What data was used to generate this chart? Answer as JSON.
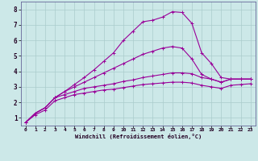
{
  "title": "",
  "xlabel": "Windchill (Refroidissement éolien,°C)",
  "ylabel": "",
  "background_color": "#cce8e8",
  "grid_color": "#aacccc",
  "line_color": "#990099",
  "xlim": [
    -0.5,
    23.5
  ],
  "ylim": [
    0.5,
    8.5
  ],
  "xticks": [
    0,
    1,
    2,
    3,
    4,
    5,
    6,
    7,
    8,
    9,
    10,
    11,
    12,
    13,
    14,
    15,
    16,
    17,
    18,
    19,
    20,
    21,
    22,
    23
  ],
  "yticks": [
    1,
    2,
    3,
    4,
    5,
    6,
    7,
    8
  ],
  "curve1_x": [
    0,
    1,
    2,
    3,
    4,
    5,
    6,
    7,
    8,
    9,
    10,
    11,
    12,
    13,
    14,
    15,
    16,
    17,
    18,
    19,
    20,
    21,
    22,
    23
  ],
  "curve1_y": [
    0.7,
    1.3,
    1.65,
    2.3,
    2.7,
    3.15,
    3.6,
    4.1,
    4.65,
    5.2,
    6.0,
    6.6,
    7.2,
    7.3,
    7.5,
    7.85,
    7.8,
    7.1,
    5.2,
    4.5,
    3.6,
    3.5,
    3.5,
    3.5
  ],
  "curve2_x": [
    0,
    1,
    2,
    3,
    4,
    5,
    6,
    7,
    8,
    9,
    10,
    11,
    12,
    13,
    14,
    15,
    16,
    17,
    18,
    19,
    20,
    21,
    22,
    23
  ],
  "curve2_y": [
    0.7,
    1.3,
    1.65,
    2.3,
    2.7,
    3.0,
    3.3,
    3.6,
    3.9,
    4.2,
    4.5,
    4.8,
    5.1,
    5.3,
    5.5,
    5.6,
    5.5,
    4.8,
    3.8,
    3.5,
    3.3,
    3.5,
    3.5,
    3.5
  ],
  "curve3_x": [
    0,
    1,
    2,
    3,
    4,
    5,
    6,
    7,
    8,
    9,
    10,
    11,
    12,
    13,
    14,
    15,
    16,
    17,
    18,
    19,
    20,
    21,
    22,
    23
  ],
  "curve3_y": [
    0.7,
    1.3,
    1.65,
    2.3,
    2.5,
    2.7,
    2.9,
    3.0,
    3.1,
    3.2,
    3.35,
    3.45,
    3.6,
    3.7,
    3.8,
    3.9,
    3.9,
    3.85,
    3.6,
    3.5,
    3.3,
    3.5,
    3.5,
    3.5
  ],
  "curve4_x": [
    0,
    1,
    2,
    3,
    4,
    5,
    6,
    7,
    8,
    9,
    10,
    11,
    12,
    13,
    14,
    15,
    16,
    17,
    18,
    19,
    20,
    21,
    22,
    23
  ],
  "curve4_y": [
    0.7,
    1.2,
    1.5,
    2.1,
    2.3,
    2.5,
    2.6,
    2.7,
    2.8,
    2.85,
    2.95,
    3.05,
    3.15,
    3.2,
    3.25,
    3.3,
    3.3,
    3.25,
    3.1,
    3.0,
    2.9,
    3.1,
    3.15,
    3.2
  ]
}
